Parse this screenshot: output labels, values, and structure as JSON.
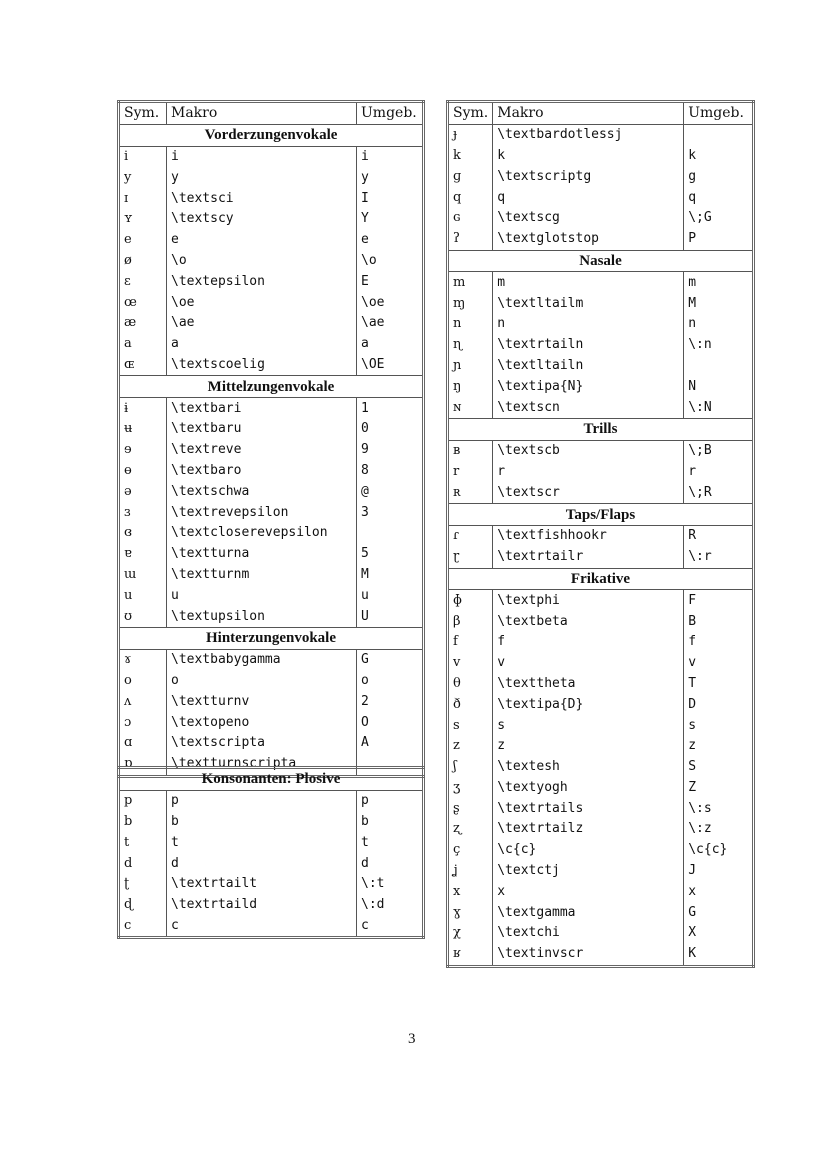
{
  "headers": {
    "sym": "Sym.",
    "macro": "Makro",
    "env": "Umgeb."
  },
  "left_table": [
    {
      "section": "Vorderzungenvokale",
      "rows": [
        [
          "i",
          "i",
          "i"
        ],
        [
          "y",
          "y",
          "y"
        ],
        [
          "ɪ",
          "\\textsci",
          "I"
        ],
        [
          "ʏ",
          "\\textscy",
          "Y"
        ],
        [
          "e",
          "e",
          "e"
        ],
        [
          "ø",
          "\\o",
          "\\o"
        ],
        [
          "ɛ",
          "\\textepsilon",
          "E"
        ],
        [
          "œ",
          "\\oe",
          "\\oe"
        ],
        [
          "æ",
          "\\ae",
          "\\ae"
        ],
        [
          "a",
          "a",
          "a"
        ],
        [
          "ɶ",
          "\\textscoelig",
          "\\OE"
        ]
      ]
    },
    {
      "section": "Mittelzungenvokale",
      "rows": [
        [
          "ɨ",
          "\\textbari",
          "1"
        ],
        [
          "ʉ",
          "\\textbaru",
          "0"
        ],
        [
          "ɘ",
          "\\textreve",
          "9"
        ],
        [
          "ɵ",
          "\\textbaro",
          "8"
        ],
        [
          "ə",
          "\\textschwa",
          "@"
        ],
        [
          "ɜ",
          "\\textrevepsilon",
          "3"
        ],
        [
          "ɞ",
          "\\textcloserevepsilon",
          ""
        ],
        [
          "ɐ",
          "\\textturna",
          "5"
        ],
        [
          "ɯ",
          "\\textturnm",
          "M"
        ],
        [
          "u",
          "u",
          "u"
        ],
        [
          "ʊ",
          "\\textupsilon",
          "U"
        ]
      ]
    },
    {
      "section": "Hinterzungenvokale",
      "rows": [
        [
          "ɤ",
          "\\textbabygamma",
          "G"
        ],
        [
          "o",
          "o",
          "o"
        ],
        [
          "ʌ",
          "\\textturnv",
          "2"
        ],
        [
          "ɔ",
          "\\textopeno",
          "O"
        ],
        [
          "ɑ",
          "\\textscripta",
          "A"
        ],
        [
          "ɒ",
          "\\textturnscripta",
          ""
        ]
      ]
    }
  ],
  "plosive_table": [
    {
      "section": "Konsonanten: Plosive",
      "rows": [
        [
          "p",
          "p",
          "p"
        ],
        [
          "b",
          "b",
          "b"
        ],
        [
          "t",
          "t",
          "t"
        ],
        [
          "d",
          "d",
          "d"
        ],
        [
          "ʈ",
          "\\textrtailt",
          "\\:t"
        ],
        [
          "ɖ",
          "\\textrtaild",
          "\\:d"
        ],
        [
          "c",
          "c",
          "c"
        ]
      ]
    }
  ],
  "right_table": [
    {
      "section": "",
      "rows": [
        [
          "ɟ",
          "\\textbardotlessj",
          ""
        ],
        [
          "k",
          "k",
          "k"
        ],
        [
          "ɡ",
          "\\textscriptg",
          "g"
        ],
        [
          "q",
          "q",
          "q"
        ],
        [
          "ɢ",
          "\\textscg",
          "\\;G"
        ],
        [
          "ʔ",
          "\\textglotstop",
          "P"
        ]
      ]
    },
    {
      "section": "Nasale",
      "rows": [
        [
          "m",
          "m",
          "m"
        ],
        [
          "ɱ",
          "\\textltailm",
          "M"
        ],
        [
          "n",
          "n",
          "n"
        ],
        [
          "ɳ",
          "\\textrtailn",
          "\\:n"
        ],
        [
          "ɲ",
          "\\textltailn",
          ""
        ],
        [
          "ŋ",
          "\\textipa{N}",
          "N"
        ],
        [
          "ɴ",
          "\\textscn",
          "\\:N"
        ]
      ]
    },
    {
      "section": "Trills",
      "rows": [
        [
          "ʙ",
          "\\textscb",
          "\\;B"
        ],
        [
          "r",
          "r",
          "r"
        ],
        [
          "ʀ",
          "\\textscr",
          "\\;R"
        ]
      ]
    },
    {
      "section": "Taps/Flaps",
      "rows": [
        [
          "ɾ",
          "\\textfishhookr",
          "R"
        ],
        [
          "ɽ",
          "\\textrtailr",
          "\\:r"
        ]
      ]
    },
    {
      "section": "Frikative",
      "rows": [
        [
          "ɸ",
          "\\textphi",
          "F"
        ],
        [
          "β",
          "\\textbeta",
          "B"
        ],
        [
          "f",
          "f",
          "f"
        ],
        [
          "v",
          "v",
          "v"
        ],
        [
          "θ",
          "\\texttheta",
          "T"
        ],
        [
          "ð",
          "\\textipa{D}",
          "D"
        ],
        [
          "s",
          "s",
          "s"
        ],
        [
          "z",
          "z",
          "z"
        ],
        [
          "ʃ",
          "\\textesh",
          "S"
        ],
        [
          "ʒ",
          "\\textyogh",
          "Z"
        ],
        [
          "ʂ",
          "\\textrtails",
          "\\:s"
        ],
        [
          "ʐ",
          "\\textrtailz",
          "\\:z"
        ],
        [
          "ç",
          "\\c{c}",
          "\\c{c}"
        ],
        [
          "ʝ",
          "\\textctj",
          "J"
        ],
        [
          "x",
          "x",
          "x"
        ],
        [
          "ɣ",
          "\\textgamma",
          "G"
        ],
        [
          "χ",
          "\\textchi",
          "X"
        ],
        [
          "ʁ",
          "\\textinvscr",
          "K"
        ]
      ]
    }
  ],
  "page_number": "3"
}
